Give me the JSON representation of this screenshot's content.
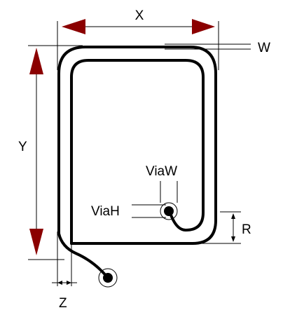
{
  "diagram": {
    "labels": {
      "x": "X",
      "y": "Y",
      "w": "W",
      "z": "Z",
      "r": "R",
      "via_w": "ViaW",
      "via_h": "ViaH"
    },
    "colors": {
      "arrow_fill": "#8B0000",
      "line": "#000000",
      "background": "#FFFFFF"
    }
  }
}
